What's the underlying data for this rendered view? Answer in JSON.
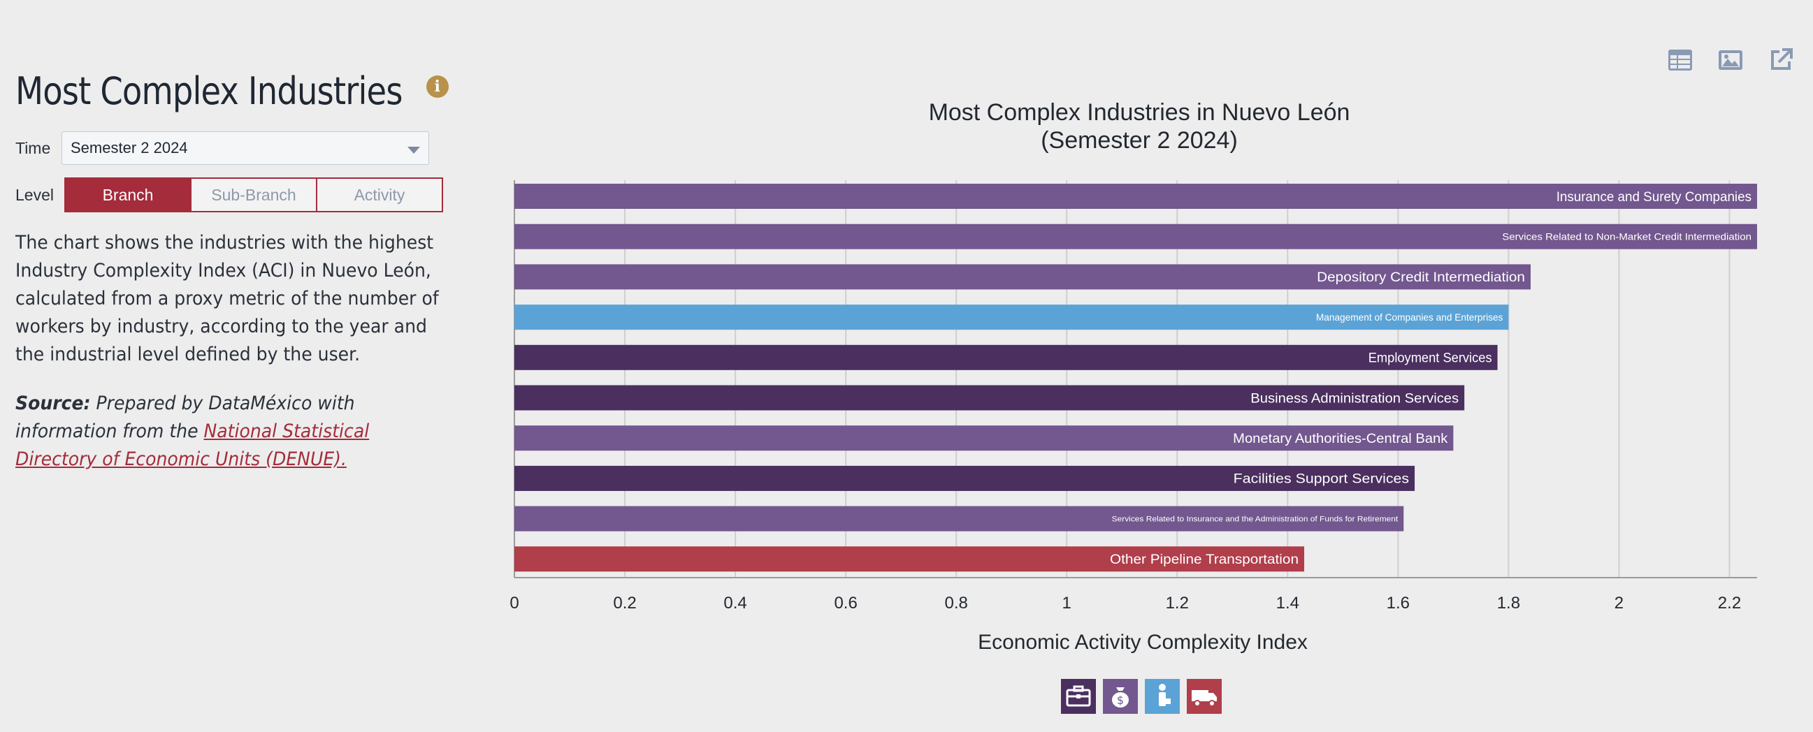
{
  "header": {
    "title": "Most Complex Industries",
    "info_glyph": "i"
  },
  "controls": {
    "time_label": "Time",
    "time_value": "Semester 2 2024",
    "level_label": "Level",
    "level_options": [
      "Branch",
      "Sub-Branch",
      "Activity"
    ],
    "level_selected": "Branch"
  },
  "description": "The chart shows the industries with the highest Industry Complexity Index (ACI) in Nuevo León, calculated from a proxy metric of the number of workers by industry, according to the year and the industrial level defined by the user.",
  "source": {
    "label": "Source:",
    "text": " Prepared by DataMéxico with information from the ",
    "link": "National Statistical Directory of Economic Units (DENUE)."
  },
  "toolbar": {
    "icons": [
      "table-icon",
      "image-icon",
      "share-icon"
    ]
  },
  "colors": {
    "accent": "#a42c3b",
    "services_light": "#73578f",
    "services_dark": "#4a2f5f",
    "management": "#5ba3d6",
    "transport": "#b03e4b"
  },
  "chart_data": {
    "type": "bar",
    "orientation": "horizontal",
    "title": "Most Complex Industries in Nuevo León",
    "subtitle": "(Semester 2 2024)",
    "xlabel": "Economic Activity Complexity Index",
    "xlim": [
      0,
      2.25
    ],
    "ticks": [
      "0",
      "0.2",
      "0.4",
      "0.6",
      "0.8",
      "1",
      "1.2",
      "1.4",
      "1.6",
      "1.8",
      "2",
      "2.2"
    ],
    "grid": true,
    "bars": [
      {
        "label": "Insurance and Surety Companies",
        "value": 2.25,
        "color": "#73578f",
        "small": false
      },
      {
        "label": "Services Related to Non-Market Credit Intermediation",
        "value": 2.25,
        "color": "#73578f",
        "small": true
      },
      {
        "label": "Depository Credit Intermediation",
        "value": 1.84,
        "color": "#73578f",
        "small": false
      },
      {
        "label": "Management of Companies and Enterprises",
        "value": 1.8,
        "color": "#5ba3d6",
        "small": true
      },
      {
        "label": "Employment Services",
        "value": 1.78,
        "color": "#4a2f5f",
        "small": false
      },
      {
        "label": "Business Administration Services",
        "value": 1.72,
        "color": "#4a2f5f",
        "small": false
      },
      {
        "label": "Monetary Authorities-Central Bank",
        "value": 1.7,
        "color": "#73578f",
        "small": false
      },
      {
        "label": "Facilities Support Services",
        "value": 1.63,
        "color": "#4a2f5f",
        "small": false
      },
      {
        "label": "Services Related to Insurance and the Administration of Funds for Retirement",
        "value": 1.61,
        "color": "#73578f",
        "small": true
      },
      {
        "label": "Other Pipeline Transportation",
        "value": 1.43,
        "color": "#b03e4b",
        "small": false
      }
    ],
    "legend_icons": [
      {
        "icon": "briefcase-icon",
        "color": "#4a2f5f"
      },
      {
        "icon": "money-bag-icon",
        "color": "#73578f"
      },
      {
        "icon": "person-icon",
        "color": "#5ba3d6"
      },
      {
        "icon": "truck-icon",
        "color": "#b03e4b"
      }
    ]
  }
}
